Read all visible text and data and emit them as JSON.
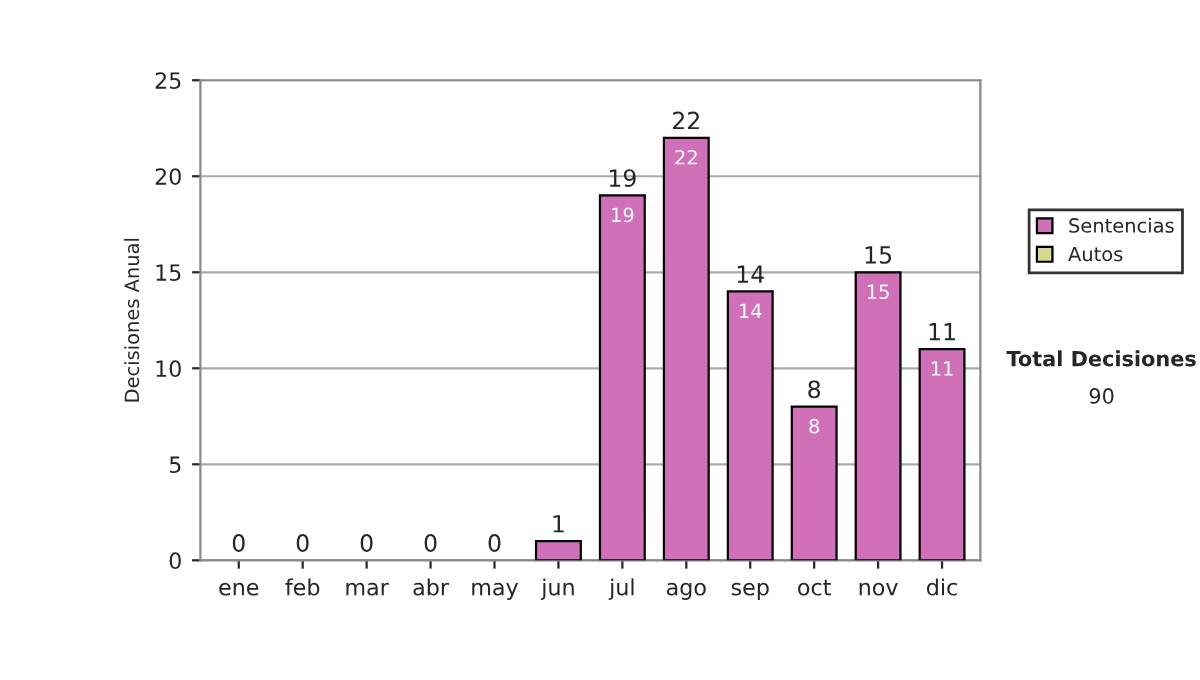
{
  "chart_data": {
    "type": "bar",
    "ylabel": "Decisiones Anual",
    "categories": [
      "ene",
      "feb",
      "mar",
      "abr",
      "may",
      "jun",
      "jul",
      "ago",
      "sep",
      "oct",
      "nov",
      "dic"
    ],
    "series": [
      {
        "name": "Sentencias",
        "color": "#d070b8",
        "values": [
          0,
          0,
          0,
          0,
          0,
          1,
          19,
          22,
          14,
          8,
          15,
          11
        ],
        "value_labels": [
          null,
          null,
          null,
          null,
          null,
          null,
          "19",
          "22",
          "14",
          "8",
          "15",
          "11"
        ]
      },
      {
        "name": "Autos",
        "color": "#d8d890",
        "values": [
          0,
          0,
          0,
          0,
          0,
          0,
          0,
          0,
          0,
          0,
          0,
          0
        ]
      }
    ],
    "stacked": true,
    "totals": [
      "0",
      "0",
      "0",
      "0",
      "0",
      "1",
      "19",
      "22",
      "14",
      "8",
      "15",
      "11"
    ],
    "ylim": [
      0,
      25
    ],
    "yticks": [
      0,
      5,
      10,
      15,
      20,
      25
    ],
    "grid": "y",
    "legend": "right",
    "annotations": [
      "Total Decisiones",
      "90"
    ]
  }
}
